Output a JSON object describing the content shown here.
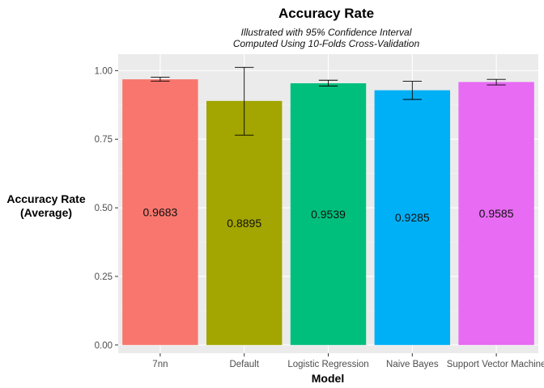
{
  "chart_data": {
    "type": "bar",
    "title": "Accuracy Rate",
    "subtitle_lines": [
      "Illustrated with 95% Confidence Interval",
      "Computed Using 10-Folds Cross-Validation"
    ],
    "xlabel": "Model",
    "ylabel_lines": [
      "Accuracy Rate",
      "(Average)"
    ],
    "categories": [
      "7nn",
      "Default",
      "Logistic Regression",
      "Naive Bayes",
      "Support Vector Machine"
    ],
    "values": [
      0.9683,
      0.8895,
      0.9539,
      0.9285,
      0.9585
    ],
    "value_labels": [
      "0.9683",
      "0.8895",
      "0.9539",
      "0.9285",
      "0.9585"
    ],
    "ci_lower": [
      0.962,
      0.765,
      0.944,
      0.895,
      0.948
    ],
    "ci_upper": [
      0.976,
      1.012,
      0.965,
      0.961,
      0.968
    ],
    "colors": [
      "#F8766D",
      "#A3A500",
      "#00BF7D",
      "#00B0F6",
      "#E76BF3"
    ],
    "ylim": [
      -0.03,
      1.06
    ],
    "yticks": [
      0.0,
      0.25,
      0.5,
      0.75,
      1.0
    ],
    "ytick_labels": [
      "0.00",
      "0.25",
      "0.50",
      "0.75",
      "1.00"
    ],
    "grid": true,
    "panel_background": "#EBEBEB",
    "legend": "none"
  }
}
